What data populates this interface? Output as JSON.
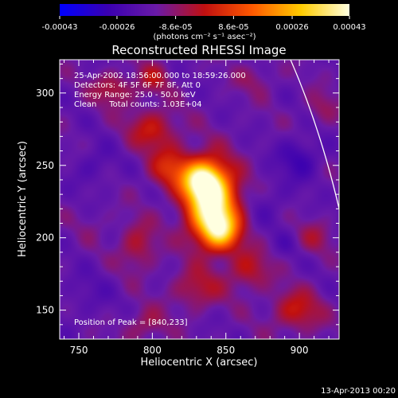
{
  "chart_data": {
    "type": "heatmap",
    "title": "Reconstructed RHESSI Image",
    "xlabel": "Heliocentric X (arcsec)",
    "ylabel": "Heliocentric Y (arcsec)",
    "xlim": [
      737,
      927
    ],
    "ylim": [
      130,
      323
    ],
    "xticks": [
      750,
      800,
      850,
      900
    ],
    "yticks": [
      150,
      200,
      250,
      300
    ],
    "colorbar": {
      "range": [
        -0.00043,
        0.00043
      ],
      "ticks": [
        "-0.00043",
        "-0.00026",
        "-8.6e-05",
        "8.6e-05",
        "0.00026",
        "0.00043"
      ],
      "tick_values": [
        -0.00043,
        -0.00026,
        -8.6e-05,
        8.6e-05,
        0.00026,
        0.00043
      ],
      "unit_label": "(photons cm⁻² s⁻¹ asec⁻²)",
      "colormap": [
        "#0000ff",
        "#3a00b0",
        "#6a1aa8",
        "#c01010",
        "#ff5a00",
        "#ffcc00",
        "#ffffe0"
      ]
    },
    "info_lines": [
      "25-Apr-2002 18:56:00.000 to 18:59:26.000",
      "Detectors: 4F 5F 6F 7F 8F, Att 0",
      "Energy Range: 25.0 - 50.0 keV",
      "Clean     Total counts: 1.03E+04"
    ],
    "peak_label": "Position of Peak = [840,233]",
    "peak": {
      "x": 840,
      "y": 233
    },
    "limb_visible": true,
    "sources": [
      {
        "x": 840,
        "y": 225,
        "sx": 12,
        "sy": 18,
        "amp": 0.9
      },
      {
        "x": 833,
        "y": 240,
        "sx": 9,
        "sy": 9,
        "amp": 0.55
      },
      {
        "x": 846,
        "y": 205,
        "sx": 9,
        "sy": 9,
        "amp": 0.5
      },
      {
        "x": 812,
        "y": 248,
        "sx": 10,
        "sy": 10,
        "amp": 0.3
      },
      {
        "x": 800,
        "y": 275,
        "sx": 12,
        "sy": 10,
        "amp": 0.25
      },
      {
        "x": 773,
        "y": 303,
        "sx": 10,
        "sy": 8,
        "amp": 0.2
      },
      {
        "x": 800,
        "y": 310,
        "sx": 8,
        "sy": 8,
        "amp": 0.18
      },
      {
        "x": 865,
        "y": 178,
        "sx": 10,
        "sy": 10,
        "amp": 0.22
      },
      {
        "x": 830,
        "y": 165,
        "sx": 12,
        "sy": 10,
        "amp": 0.2
      },
      {
        "x": 898,
        "y": 150,
        "sx": 12,
        "sy": 10,
        "amp": 0.25
      },
      {
        "x": 795,
        "y": 140,
        "sx": 10,
        "sy": 8,
        "amp": 0.15
      },
      {
        "x": 790,
        "y": 195,
        "sx": 9,
        "sy": 12,
        "amp": 0.2
      },
      {
        "x": 910,
        "y": 200,
        "sx": 8,
        "sy": 8,
        "amp": 0.14
      },
      {
        "x": 915,
        "y": 290,
        "sx": 8,
        "sy": 8,
        "amp": 0.12
      },
      {
        "x": 870,
        "y": 310,
        "sx": 10,
        "sy": 8,
        "amp": 0.1
      },
      {
        "x": 760,
        "y": 210,
        "sx": 8,
        "sy": 8,
        "amp": 0.05
      },
      {
        "x": 900,
        "y": 255,
        "sx": 10,
        "sy": 10,
        "amp": -0.18
      },
      {
        "x": 760,
        "y": 250,
        "sx": 10,
        "sy": 10,
        "amp": -0.1
      },
      {
        "x": 880,
        "y": 225,
        "sx": 10,
        "sy": 10,
        "amp": -0.08
      },
      {
        "x": 755,
        "y": 160,
        "sx": 12,
        "sy": 12,
        "amp": -0.07
      },
      {
        "x": 890,
        "y": 195,
        "sx": 6,
        "sy": 6,
        "amp": -0.06
      }
    ]
  },
  "footer": {
    "timestamp": "13-Apr-2013 00:20"
  }
}
